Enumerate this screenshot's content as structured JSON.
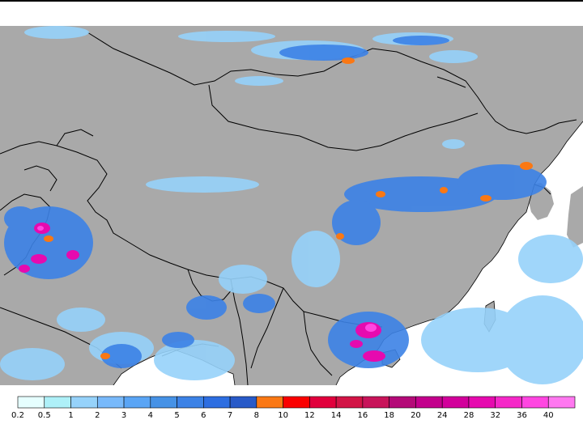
{
  "map": {
    "land_color": "#a9a9a9",
    "sea_color": "#ffffff",
    "border_color": "#000000"
  },
  "legend": {
    "labels": [
      "0.2",
      "0.5",
      "1",
      "2",
      "3",
      "4",
      "5",
      "6",
      "7",
      "8",
      "10",
      "12",
      "14",
      "16",
      "18",
      "20",
      "24",
      "28",
      "32",
      "36",
      "40"
    ],
    "colors": [
      "#e6ffff",
      "#aef0f8",
      "#96d2fa",
      "#78b9fa",
      "#5aa5f5",
      "#4692e6",
      "#3c82e6",
      "#2d6ee1",
      "#285ac8",
      "#fa7814",
      "#fa0000",
      "#e1003c",
      "#d21446",
      "#c8145a",
      "#b40a78",
      "#c3008c",
      "#d2009b",
      "#e60aaf",
      "#f528c8",
      "#ff46e1",
      "#ff78f0"
    ]
  }
}
